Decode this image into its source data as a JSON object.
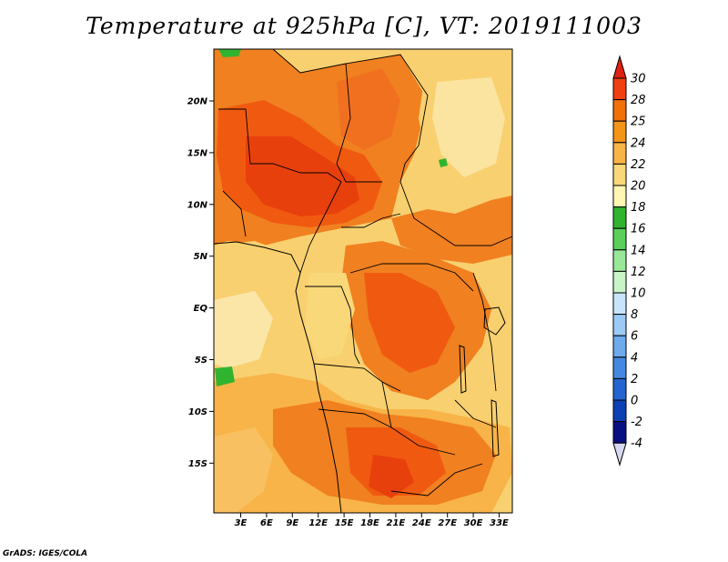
{
  "title": "Temperature at 925hPa [C], VT: 2019111003",
  "credit": "GrADS: IGES/COLA",
  "map": {
    "variable": "Temperature at 925hPa",
    "unit": "C",
    "valid_time": "2019111003",
    "lon_labels": [
      "3E",
      "6E",
      "9E",
      "12E",
      "15E",
      "18E",
      "21E",
      "24E",
      "27E",
      "30E",
      "33E"
    ],
    "lat_labels": [
      "20N",
      "15N",
      "10N",
      "5N",
      "EQ",
      "5S",
      "10S",
      "15S"
    ]
  },
  "colorbar": {
    "levels": [
      "30",
      "28",
      "25",
      "24",
      "22",
      "20",
      "18",
      "16",
      "14",
      "12",
      "10",
      "8",
      "6",
      "4",
      "2",
      "0",
      "-2",
      "-4"
    ],
    "colors": [
      "#e02010",
      "#f04010",
      "#f0700a",
      "#f49418",
      "#f8b448",
      "#f8d878",
      "#fff6b4",
      "#30b430",
      "#5ad05a",
      "#98e898",
      "#c8f4c8",
      "#c8e4fa",
      "#9ccaf4",
      "#6eaaec",
      "#4688e0",
      "#2464d0",
      "#0c40b4",
      "#081080",
      "#d8d8f0"
    ]
  }
}
